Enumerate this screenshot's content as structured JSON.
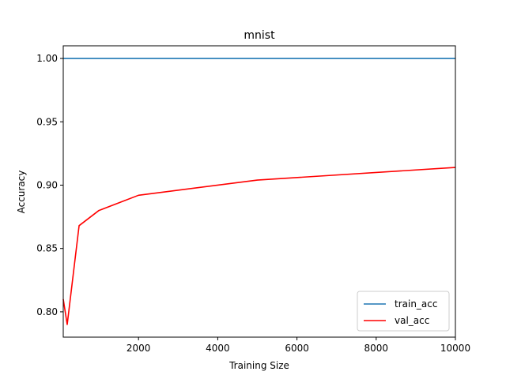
{
  "chart_data": {
    "type": "line",
    "title": "mnist",
    "xlabel": "Training Size",
    "ylabel": "Accuracy",
    "xlim": [
      100,
      10000
    ],
    "ylim": [
      0.78,
      1.01
    ],
    "xticks": [
      2000,
      4000,
      6000,
      8000,
      10000
    ],
    "xtick_labels": [
      "2000",
      "4000",
      "6000",
      "8000",
      "10000"
    ],
    "yticks": [
      0.8,
      0.85,
      0.9,
      0.95,
      1.0
    ],
    "ytick_labels": [
      "0.80",
      "0.85",
      "0.90",
      "0.95",
      "1.00"
    ],
    "grid": false,
    "legend_position": "lower-right",
    "series": [
      {
        "name": "train_acc",
        "color": "#1f77b4",
        "x": [
          100,
          200,
          500,
          1000,
          2000,
          5000,
          10000
        ],
        "y": [
          1.0,
          1.0,
          1.0,
          1.0,
          1.0,
          1.0,
          1.0
        ]
      },
      {
        "name": "val_acc",
        "color": "#ff0000",
        "x": [
          100,
          200,
          500,
          1000,
          2000,
          5000,
          10000
        ],
        "y": [
          0.81,
          0.79,
          0.868,
          0.88,
          0.892,
          0.904,
          0.914
        ]
      }
    ]
  }
}
